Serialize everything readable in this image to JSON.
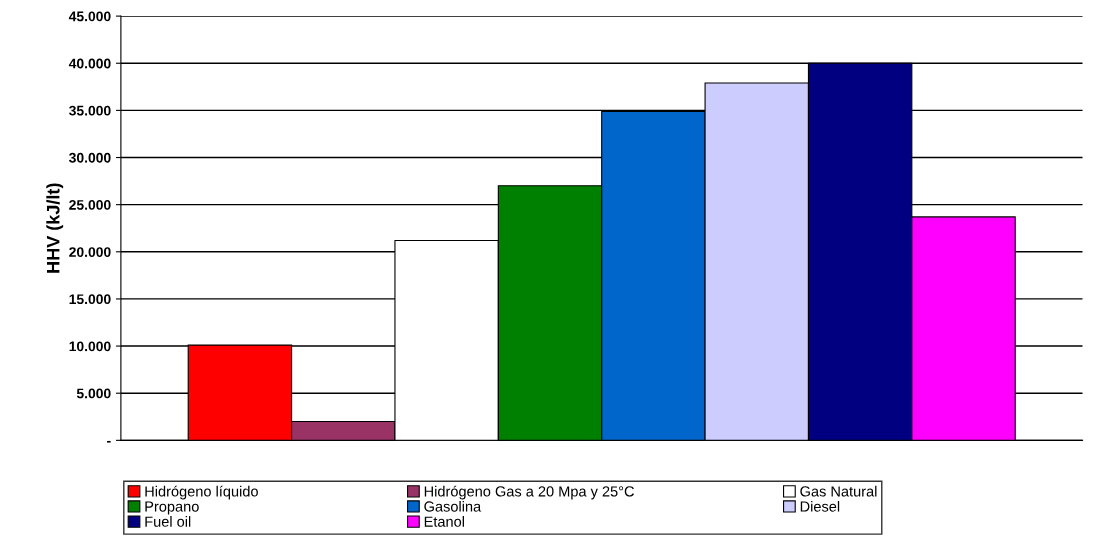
{
  "chart_data": {
    "type": "bar",
    "ylabel": "HHV (kJ/lt)",
    "categories": [
      null
    ],
    "series": [
      {
        "name": "Hidrógeno líquido",
        "color": "#ff0000",
        "values": [
          10100
        ]
      },
      {
        "name": "Hidrógeno Gas a 20 Mpa y 25°C",
        "color": "#993366",
        "values": [
          2000
        ]
      },
      {
        "name": "Gas Natural",
        "color": "#ffffff",
        "values": [
          21200
        ]
      },
      {
        "name": "Propano",
        "color": "#008000",
        "values": [
          27000
        ]
      },
      {
        "name": "Gasolina",
        "color": "#0066cc",
        "values": [
          34900
        ]
      },
      {
        "name": "Diesel",
        "color": "#ccccff",
        "values": [
          37900
        ]
      },
      {
        "name": "Fuel oil",
        "color": "#000080",
        "values": [
          40000
        ]
      },
      {
        "name": "Etanol",
        "color": "#ff00ff",
        "values": [
          23700
        ]
      }
    ],
    "ylim": [
      0,
      45000
    ],
    "yticks": [
      {
        "value": 0,
        "label": "-"
      },
      {
        "value": 5000,
        "label": "5.000"
      },
      {
        "value": 10000,
        "label": "10.000"
      },
      {
        "value": 15000,
        "label": "15.000"
      },
      {
        "value": 20000,
        "label": "20.000"
      },
      {
        "value": 25000,
        "label": "25.000"
      },
      {
        "value": 30000,
        "label": "30.000"
      },
      {
        "value": 35000,
        "label": "35.000"
      },
      {
        "value": 40000,
        "label": "40.000"
      },
      {
        "value": 45000,
        "label": "45.000"
      }
    ],
    "grid": "y",
    "legend": "bottom"
  }
}
